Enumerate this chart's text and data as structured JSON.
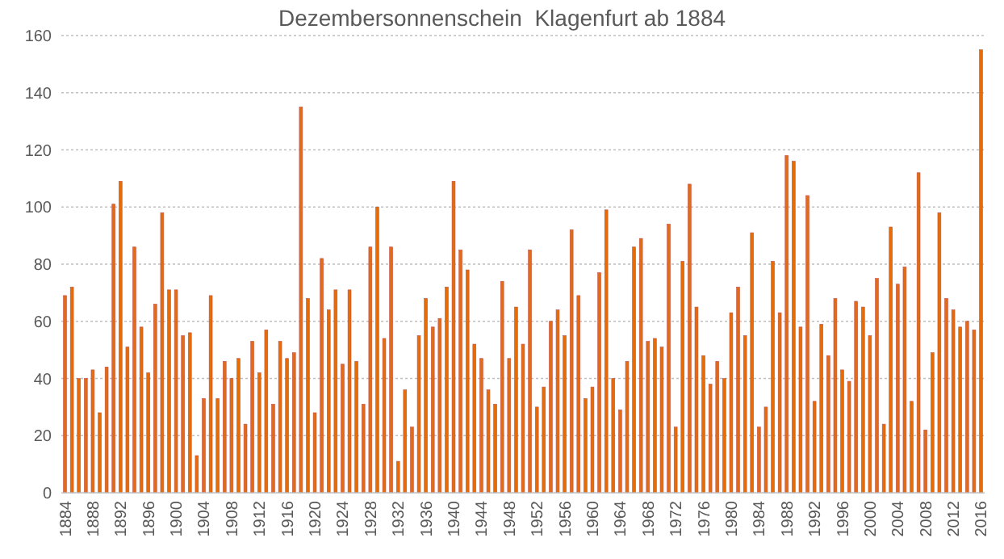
{
  "chart_data": {
    "type": "bar",
    "title": "Dezembersonnenschein  Klagenfurt ab 1884",
    "categories": [
      "1884",
      null,
      null,
      null,
      "1888",
      null,
      null,
      null,
      "1892",
      null,
      null,
      null,
      "1896",
      null,
      null,
      null,
      "1900",
      null,
      null,
      null,
      "1904",
      null,
      null,
      null,
      "1908",
      null,
      null,
      null,
      "1912",
      null,
      null,
      null,
      "1916",
      null,
      null,
      null,
      "1920",
      null,
      null,
      null,
      "1924",
      null,
      null,
      null,
      "1928",
      null,
      null,
      null,
      "1932",
      null,
      null,
      null,
      "1936",
      null,
      null,
      null,
      "1940",
      null,
      null,
      null,
      "1944",
      null,
      null,
      null,
      "1948",
      null,
      null,
      null,
      "1952",
      null,
      null,
      null,
      "1956",
      null,
      null,
      null,
      "1960",
      null,
      null,
      null,
      "1964",
      null,
      null,
      null,
      "1968",
      null,
      null,
      null,
      "1972",
      null,
      null,
      null,
      "1976",
      null,
      null,
      null,
      "1980",
      null,
      null,
      null,
      "1984",
      null,
      null,
      null,
      "1988",
      null,
      null,
      null,
      "1992",
      null,
      null,
      null,
      "1996",
      null,
      null,
      null,
      "2000",
      null,
      null,
      null,
      "2004",
      null,
      null,
      null,
      "2008",
      null,
      null,
      null,
      "2012",
      null,
      null,
      null,
      "2016"
    ],
    "values": [
      69,
      72,
      40,
      40,
      43,
      28,
      44,
      101,
      109,
      51,
      86,
      58,
      42,
      66,
      98,
      71,
      71,
      55,
      56,
      13,
      33,
      69,
      33,
      46,
      40,
      47,
      24,
      53,
      42,
      57,
      31,
      53,
      47,
      49,
      135,
      68,
      28,
      82,
      64,
      71,
      45,
      71,
      46,
      31,
      86,
      100,
      54,
      86,
      11,
      36,
      23,
      55,
      68,
      58,
      61,
      72,
      109,
      85,
      78,
      52,
      47,
      36,
      31,
      74,
      47,
      65,
      52,
      85,
      30,
      37,
      60,
      64,
      55,
      92,
      69,
      33,
      37,
      77,
      99,
      40,
      29,
      46,
      86,
      89,
      53,
      54,
      51,
      94,
      23,
      81,
      108,
      65,
      48,
      38,
      46,
      40,
      63,
      72,
      55,
      91,
      23,
      30,
      81,
      63,
      118,
      116,
      58,
      104,
      32,
      59,
      48,
      68,
      43,
      39,
      67,
      65,
      55,
      75,
      24,
      93,
      73,
      79,
      32,
      112,
      22,
      49,
      98,
      68,
      64,
      58,
      60,
      57,
      155
    ],
    "color": "#e46c0a",
    "ylim": [
      0,
      160
    ],
    "yticks": [
      0,
      20,
      40,
      60,
      80,
      100,
      120,
      140,
      160
    ],
    "grid": "y"
  }
}
